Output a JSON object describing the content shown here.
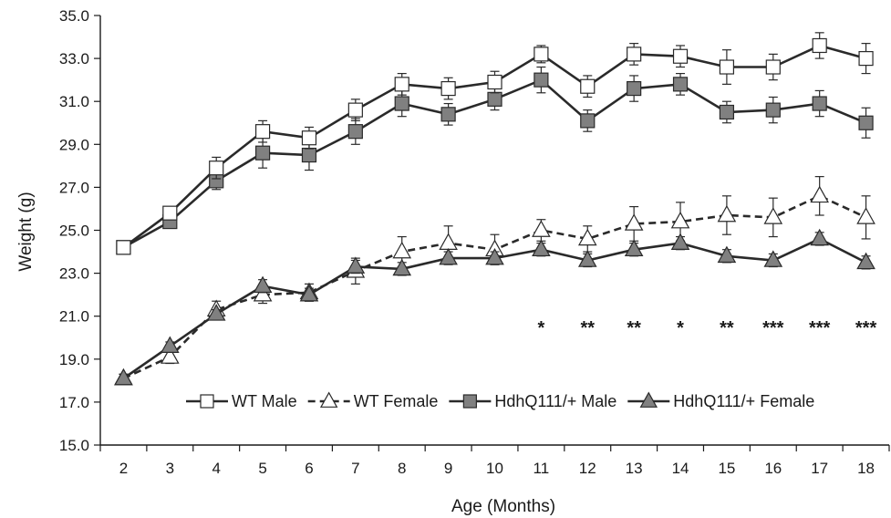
{
  "chart_data": {
    "type": "line",
    "xlabel": "Age (Months)",
    "ylabel": "Weight (g)",
    "ylim": [
      15.0,
      35.0
    ],
    "yticks": [
      "15.0",
      "17.0",
      "19.0",
      "21.0",
      "23.0",
      "25.0",
      "27.0",
      "29.0",
      "31.0",
      "33.0",
      "35.0"
    ],
    "x": [
      2,
      3,
      4,
      5,
      6,
      7,
      8,
      9,
      10,
      11,
      12,
      13,
      14,
      15,
      16,
      17,
      18
    ],
    "grid": false,
    "legend_position": "bottom-right",
    "series": [
      {
        "name": "WT Male",
        "marker": "square",
        "fill": "#ffffff",
        "dash": "solid",
        "values": [
          24.2,
          25.8,
          27.9,
          29.6,
          29.3,
          30.6,
          31.8,
          31.6,
          31.9,
          33.2,
          31.7,
          33.2,
          33.1,
          32.6,
          32.6,
          33.6,
          33.0
        ],
        "errors": [
          0.3,
          0.3,
          0.5,
          0.5,
          0.5,
          0.5,
          0.5,
          0.5,
          0.5,
          0.4,
          0.5,
          0.5,
          0.5,
          0.8,
          0.6,
          0.6,
          0.7
        ]
      },
      {
        "name": "WT Female",
        "marker": "triangle",
        "fill": "#ffffff",
        "dash": "dashed",
        "values": [
          18.1,
          19.1,
          21.3,
          22.0,
          22.1,
          23.1,
          24.0,
          24.4,
          24.1,
          25.0,
          24.6,
          25.3,
          25.4,
          25.7,
          25.6,
          26.6,
          25.6
        ],
        "errors": [
          0.2,
          0.3,
          0.4,
          0.4,
          0.4,
          0.6,
          0.7,
          0.8,
          0.7,
          0.5,
          0.6,
          0.8,
          0.9,
          0.9,
          0.9,
          0.9,
          1.0
        ]
      },
      {
        "name": "HdhQ111/+ Male",
        "marker": "square",
        "fill": "#808080",
        "dash": "solid",
        "values": [
          24.2,
          25.4,
          27.3,
          28.6,
          28.5,
          29.6,
          30.9,
          30.4,
          31.1,
          32.0,
          30.1,
          31.6,
          31.8,
          30.5,
          30.6,
          30.9,
          30.0
        ],
        "errors": [
          0.3,
          0.3,
          0.4,
          0.7,
          0.7,
          0.6,
          0.6,
          0.5,
          0.5,
          0.6,
          0.5,
          0.6,
          0.5,
          0.5,
          0.6,
          0.6,
          0.7
        ]
      },
      {
        "name": "HdhQ111/+ Female",
        "marker": "triangle",
        "fill": "#808080",
        "dash": "solid",
        "values": [
          18.1,
          19.6,
          21.1,
          22.4,
          22.0,
          23.3,
          23.2,
          23.7,
          23.7,
          24.1,
          23.6,
          24.1,
          24.4,
          23.8,
          23.6,
          24.6,
          23.5
        ],
        "errors": [
          0.2,
          0.2,
          0.2,
          0.3,
          0.3,
          0.3,
          0.3,
          0.3,
          0.3,
          0.3,
          0.3,
          0.3,
          0.3,
          0.3,
          0.3,
          0.3,
          0.3
        ]
      }
    ],
    "annotations": [
      {
        "x": 11,
        "text": "*"
      },
      {
        "x": 12,
        "text": "**"
      },
      {
        "x": 13,
        "text": "**"
      },
      {
        "x": 14,
        "text": "*"
      },
      {
        "x": 15,
        "text": "**"
      },
      {
        "x": 16,
        "text": "***"
      },
      {
        "x": 17,
        "text": "***"
      },
      {
        "x": 18,
        "text": "***"
      }
    ]
  }
}
